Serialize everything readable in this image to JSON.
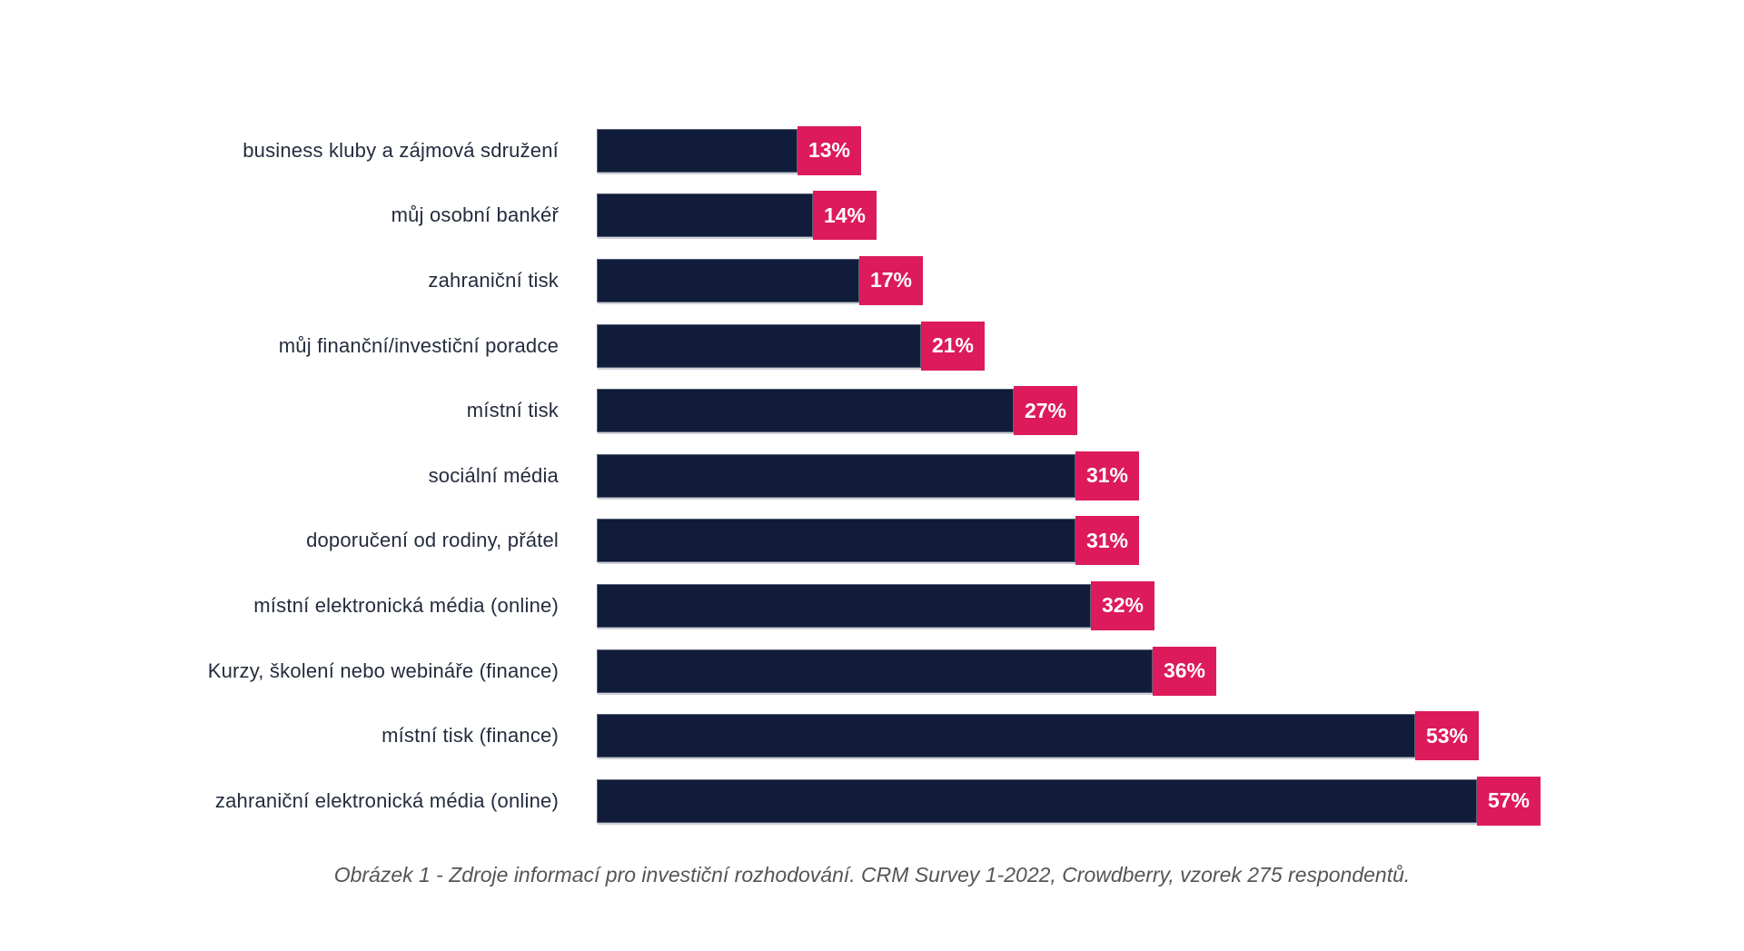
{
  "chart_data": {
    "type": "bar",
    "orientation": "horizontal",
    "title": "",
    "xlabel": "",
    "ylabel": "",
    "grid": false,
    "legend": "none",
    "sort_order": "ascending",
    "xlim": [
      0,
      60
    ],
    "value_suffix": "%",
    "categories": [
      "business kluby a zájmová sdružení",
      "můj osobní bankéř",
      "zahraniční tisk",
      "můj finanční/investiční poradce",
      "místní tisk",
      "sociální média",
      "doporučení od rodiny, přátel",
      "místní elektronická média (online)",
      "Kurzy, školení nebo webináře (finance)",
      "místní tisk (finance)",
      "zahraniční elektronická média (online)"
    ],
    "values": [
      13,
      14,
      17,
      21,
      27,
      31,
      31,
      32,
      36,
      53,
      57
    ],
    "value_labels": [
      "13%",
      "14%",
      "17%",
      "21%",
      "27%",
      "31%",
      "31%",
      "32%",
      "36%",
      "53%",
      "57%"
    ],
    "colors": {
      "bar": "#101c3a",
      "value_badge_bg": "#dc1a5c",
      "value_badge_text": "#ffffff",
      "category_text": "#242c3e",
      "caption_text": "#555555",
      "background": "#ffffff"
    },
    "caption": "Obrázek 1 - Zdroje informací pro investiční rozhodování. CRM Survey 1-2022, Crowdberry, vzorek 275 respondentů."
  }
}
